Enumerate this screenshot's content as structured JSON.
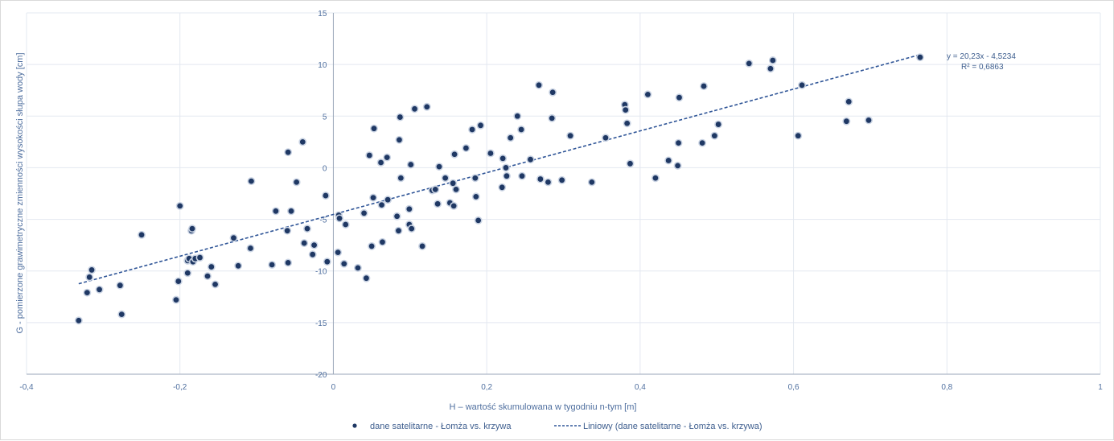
{
  "chart_data": {
    "type": "scatter",
    "xlabel": "H – wartość skumulowana w tygodniu n-tym [m]",
    "ylabel": "G -   pomierzone   grawimetryczne  zmienności  wysokości  słupa  wody   [cm]",
    "xlim": [
      -0.4,
      1
    ],
    "ylim": [
      -20,
      15
    ],
    "x_ticks": [
      "-0,4",
      "-0,2",
      "0",
      "0,2",
      "0,4",
      "0,6",
      "0,8",
      "1"
    ],
    "y_ticks": [
      "15",
      "10",
      "5",
      "0",
      "-5",
      "-10",
      "-15",
      "-20"
    ],
    "grid": "on",
    "legend_position": "bottom",
    "series": [
      {
        "name": "dane satelitarne - Łomża vs. krzywa",
        "color": "#1f3864",
        "points": [
          [
            -0.332,
            -14.8
          ],
          [
            -0.321,
            -12.1
          ],
          [
            -0.318,
            -10.6
          ],
          [
            -0.315,
            -9.9
          ],
          [
            -0.305,
            -11.8
          ],
          [
            -0.278,
            -11.4
          ],
          [
            -0.276,
            -14.2
          ],
          [
            -0.25,
            -6.5
          ],
          [
            -0.205,
            -12.8
          ],
          [
            -0.202,
            -11.0
          ],
          [
            -0.2,
            -3.7
          ],
          [
            -0.19,
            -10.2
          ],
          [
            -0.19,
            -9.0
          ],
          [
            -0.188,
            -8.8
          ],
          [
            -0.185,
            -6.1
          ],
          [
            -0.184,
            -5.9
          ],
          [
            -0.183,
            -9.1
          ],
          [
            -0.18,
            -8.8
          ],
          [
            -0.174,
            -8.7
          ],
          [
            -0.164,
            -10.5
          ],
          [
            -0.159,
            -9.6
          ],
          [
            -0.154,
            -11.3
          ],
          [
            -0.13,
            -6.8
          ],
          [
            -0.124,
            -9.5
          ],
          [
            -0.108,
            -7.8
          ],
          [
            -0.107,
            -1.3
          ],
          [
            -0.08,
            -9.4
          ],
          [
            -0.075,
            -4.2
          ],
          [
            -0.06,
            -6.1
          ],
          [
            -0.059,
            -9.2
          ],
          [
            -0.059,
            1.5
          ],
          [
            -0.055,
            -4.2
          ],
          [
            -0.048,
            -1.4
          ],
          [
            -0.04,
            2.5
          ],
          [
            -0.038,
            -7.3
          ],
          [
            -0.034,
            -5.9
          ],
          [
            -0.027,
            -8.4
          ],
          [
            -0.025,
            -7.5
          ],
          [
            -0.01,
            -2.7
          ],
          [
            -0.008,
            -9.1
          ],
          [
            0.006,
            -8.2
          ],
          [
            0.007,
            -4.6
          ],
          [
            0.008,
            -4.9
          ],
          [
            0.014,
            -9.3
          ],
          [
            0.016,
            -5.5
          ],
          [
            0.032,
            -9.7
          ],
          [
            0.04,
            -4.4
          ],
          [
            0.043,
            -10.7
          ],
          [
            0.047,
            1.2
          ],
          [
            0.05,
            -7.6
          ],
          [
            0.052,
            -2.9
          ],
          [
            0.053,
            3.8
          ],
          [
            0.062,
            0.5
          ],
          [
            0.063,
            -3.6
          ],
          [
            0.064,
            -7.2
          ],
          [
            0.07,
            1.0
          ],
          [
            0.071,
            -3.1
          ],
          [
            0.083,
            -4.7
          ],
          [
            0.085,
            -6.1
          ],
          [
            0.086,
            2.7
          ],
          [
            0.087,
            4.9
          ],
          [
            0.088,
            -1.0
          ],
          [
            0.099,
            -5.5
          ],
          [
            0.099,
            -4.0
          ],
          [
            0.101,
            0.3
          ],
          [
            0.102,
            -5.9
          ],
          [
            0.106,
            5.7
          ],
          [
            0.116,
            -7.6
          ],
          [
            0.122,
            5.9
          ],
          [
            0.129,
            -2.2
          ],
          [
            0.133,
            -2.1
          ],
          [
            0.136,
            -3.5
          ],
          [
            0.138,
            0.1
          ],
          [
            0.146,
            -1.0
          ],
          [
            0.152,
            -3.4
          ],
          [
            0.156,
            -1.5
          ],
          [
            0.157,
            -3.7
          ],
          [
            0.158,
            1.3
          ],
          [
            0.16,
            -2.1
          ],
          [
            0.173,
            1.9
          ],
          [
            0.181,
            3.7
          ],
          [
            0.185,
            -1.0
          ],
          [
            0.186,
            -2.8
          ],
          [
            0.189,
            -5.1
          ],
          [
            0.192,
            4.1
          ],
          [
            0.205,
            1.4
          ],
          [
            0.22,
            -1.9
          ],
          [
            0.221,
            0.9
          ],
          [
            0.225,
            0.0
          ],
          [
            0.226,
            -0.8
          ],
          [
            0.231,
            2.9
          ],
          [
            0.24,
            5.0
          ],
          [
            0.245,
            3.7
          ],
          [
            0.246,
            -0.8
          ],
          [
            0.257,
            0.8
          ],
          [
            0.268,
            8.0
          ],
          [
            0.27,
            -1.1
          ],
          [
            0.28,
            -1.4
          ],
          [
            0.285,
            4.8
          ],
          [
            0.286,
            7.3
          ],
          [
            0.298,
            -1.2
          ],
          [
            0.309,
            3.1
          ],
          [
            0.337,
            -1.4
          ],
          [
            0.355,
            2.9
          ],
          [
            0.38,
            6.1
          ],
          [
            0.381,
            5.6
          ],
          [
            0.383,
            4.3
          ],
          [
            0.387,
            0.4
          ],
          [
            0.41,
            7.1
          ],
          [
            0.42,
            -1.0
          ],
          [
            0.437,
            0.7
          ],
          [
            0.449,
            0.2
          ],
          [
            0.45,
            2.4
          ],
          [
            0.451,
            6.8
          ],
          [
            0.481,
            2.4
          ],
          [
            0.483,
            7.9
          ],
          [
            0.497,
            3.1
          ],
          [
            0.502,
            4.2
          ],
          [
            0.542,
            10.1
          ],
          [
            0.57,
            9.6
          ],
          [
            0.573,
            10.4
          ],
          [
            0.606,
            3.1
          ],
          [
            0.611,
            8.0
          ],
          [
            0.669,
            4.5
          ],
          [
            0.672,
            6.4
          ],
          [
            0.698,
            4.6
          ],
          [
            0.765,
            10.7
          ]
        ]
      },
      {
        "name": "Liniowy (dane satelitarne - Łomża vs. krzywa)",
        "color": "#2f5597",
        "type": "trendline",
        "slope": 20.23,
        "intercept": -4.5234,
        "x_range": [
          -0.332,
          0.765
        ]
      }
    ],
    "annotation": {
      "equation": "y = 20,23x - 4,5234",
      "r2": "R² = 0,6863"
    }
  }
}
